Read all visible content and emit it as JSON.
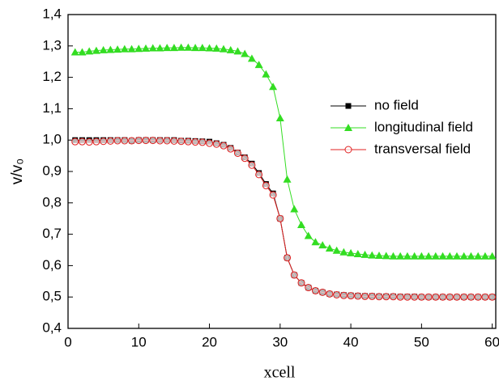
{
  "chart_data": {
    "type": "line",
    "x_label": "xcell",
    "y_label": "v/v₀",
    "x": [
      1,
      2,
      3,
      4,
      5,
      6,
      7,
      8,
      9,
      10,
      11,
      12,
      13,
      14,
      15,
      16,
      17,
      18,
      19,
      20,
      21,
      22,
      23,
      24,
      25,
      26,
      27,
      28,
      29,
      30,
      31,
      32,
      33,
      34,
      35,
      36,
      37,
      38,
      39,
      40,
      41,
      42,
      43,
      44,
      45,
      46,
      47,
      48,
      49,
      50,
      51,
      52,
      53,
      54,
      55,
      56,
      57,
      58,
      59,
      60
    ],
    "series": [
      {
        "name": "no field",
        "color": "#000000",
        "marker": "square",
        "values": [
          1.0,
          1.0,
          1.0,
          1.0,
          1.0,
          1.0,
          1.0,
          1.0,
          0.998,
          1.0,
          1.0,
          1.0,
          1.0,
          1.0,
          1.0,
          0.998,
          0.998,
          0.997,
          0.996,
          0.995,
          0.99,
          0.985,
          0.975,
          0.96,
          0.945,
          0.925,
          0.895,
          0.86,
          0.83,
          0.75,
          0.625,
          0.57,
          0.545,
          0.53,
          0.52,
          0.515,
          0.51,
          0.508,
          0.506,
          0.505,
          0.504,
          0.503,
          0.503,
          0.502,
          0.502,
          0.502,
          0.501,
          0.501,
          0.501,
          0.5,
          0.5,
          0.5,
          0.5,
          0.5,
          0.5,
          0.5,
          0.5,
          0.5,
          0.5,
          0.5
        ]
      },
      {
        "name": "longitudinal field",
        "color": "#33dd22",
        "marker": "triangle",
        "values": [
          1.28,
          1.28,
          1.283,
          1.285,
          1.287,
          1.288,
          1.289,
          1.29,
          1.29,
          1.291,
          1.292,
          1.293,
          1.293,
          1.294,
          1.294,
          1.295,
          1.295,
          1.294,
          1.294,
          1.293,
          1.292,
          1.29,
          1.287,
          1.283,
          1.275,
          1.26,
          1.24,
          1.21,
          1.17,
          1.07,
          0.875,
          0.78,
          0.73,
          0.695,
          0.675,
          0.665,
          0.655,
          0.648,
          0.643,
          0.64,
          0.637,
          0.635,
          0.633,
          0.632,
          0.631,
          0.63,
          0.63,
          0.63,
          0.63,
          0.63,
          0.63,
          0.63,
          0.63,
          0.63,
          0.63,
          0.63,
          0.63,
          0.63,
          0.63,
          0.63
        ]
      },
      {
        "name": "transversal field",
        "color": "#e02020",
        "marker": "circle",
        "values": [
          0.995,
          0.995,
          0.994,
          0.995,
          0.996,
          0.997,
          0.998,
          0.998,
          0.998,
          0.999,
          0.999,
          0.999,
          0.998,
          0.998,
          0.997,
          0.996,
          0.995,
          0.994,
          0.993,
          0.99,
          0.987,
          0.982,
          0.972,
          0.958,
          0.942,
          0.92,
          0.89,
          0.855,
          0.825,
          0.75,
          0.625,
          0.57,
          0.545,
          0.53,
          0.52,
          0.515,
          0.51,
          0.507,
          0.505,
          0.504,
          0.503,
          0.502,
          0.502,
          0.501,
          0.501,
          0.501,
          0.5,
          0.5,
          0.5,
          0.5,
          0.5,
          0.5,
          0.5,
          0.5,
          0.5,
          0.5,
          0.5,
          0.5,
          0.5,
          0.5
        ]
      }
    ],
    "xlim": [
      0,
      60.5
    ],
    "xticks": [
      0,
      10,
      20,
      30,
      40,
      50,
      60
    ],
    "ylim": [
      0.4,
      1.4
    ],
    "yticks": [
      {
        "value": 0.4,
        "label": "0,4"
      },
      {
        "value": 0.5,
        "label": "0,5"
      },
      {
        "value": 0.6,
        "label": "0,6"
      },
      {
        "value": 0.7,
        "label": "0,7"
      },
      {
        "value": 0.8,
        "label": "0,8"
      },
      {
        "value": 0.9,
        "label": "0,9"
      },
      {
        "value": 1.0,
        "label": "1,0"
      },
      {
        "value": 1.1,
        "label": "1,1"
      },
      {
        "value": 1.2,
        "label": "1,2"
      },
      {
        "value": 1.3,
        "label": "1,3"
      },
      {
        "value": 1.4,
        "label": "1,4"
      }
    ],
    "grid": false,
    "legend": "center right"
  }
}
